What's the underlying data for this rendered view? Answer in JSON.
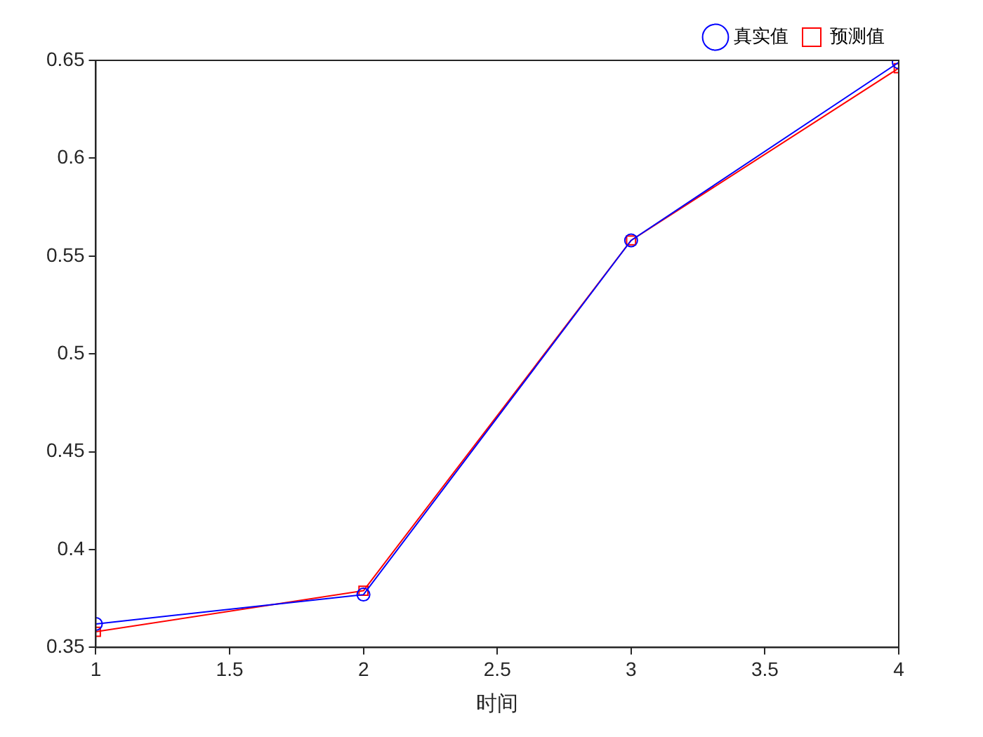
{
  "chart_data": {
    "type": "line",
    "xlabel": "时间",
    "x": [
      1,
      2,
      3,
      4
    ],
    "series": [
      {
        "name": "真实值",
        "color": "#0000ff",
        "marker": "circle",
        "values": [
          0.362,
          0.377,
          0.558,
          0.649
        ]
      },
      {
        "name": "预测值",
        "color": "#ff0000",
        "marker": "square",
        "values": [
          0.358,
          0.379,
          0.558,
          0.646
        ]
      }
    ],
    "xlim": [
      1,
      4
    ],
    "xticks": [
      1,
      1.5,
      2,
      2.5,
      3,
      3.5,
      4
    ],
    "ylim": [
      0.35,
      0.65
    ],
    "yticks": [
      0.35,
      0.4,
      0.45,
      0.5,
      0.55,
      0.6,
      0.65
    ],
    "grid": false,
    "legend": "top right",
    "line_style": "solid"
  }
}
